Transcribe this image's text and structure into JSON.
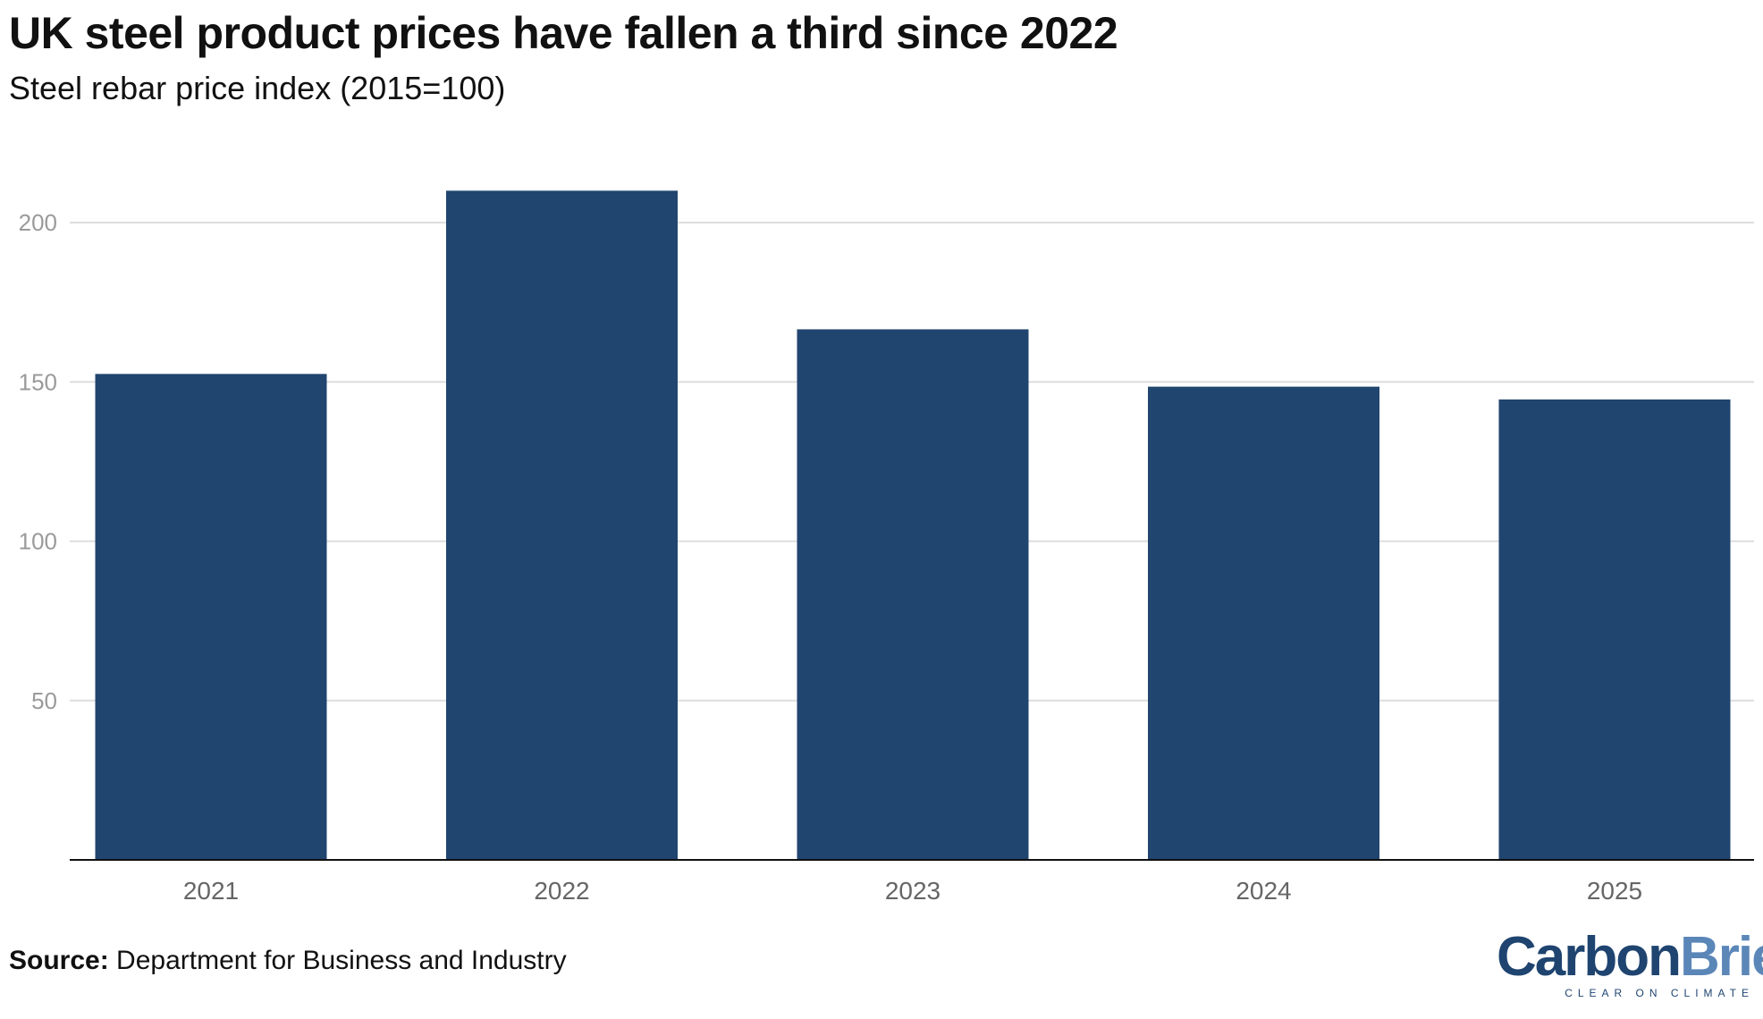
{
  "title": "UK steel product prices have fallen a third since 2022",
  "subtitle": "Steel rebar price index (2015=100)",
  "source_label": "Source:",
  "source_text": "Department for Business and Industry",
  "logo": {
    "word_part1": "Carbon",
    "word_part2": "Brief",
    "tagline": "CLEAR ON CLIMATE"
  },
  "colors": {
    "bar": "#20456f",
    "grid": "#dddddd",
    "tick_text": "#9a9a9a",
    "axis": "#111111",
    "x_label": "#666666"
  },
  "chart_data": {
    "type": "bar",
    "title": "UK steel product prices have fallen a third since 2022",
    "subtitle": "Steel rebar price index (2015=100)",
    "categories": [
      "2021",
      "2022",
      "2023",
      "2024",
      "2025"
    ],
    "values": [
      152.5,
      210,
      166.5,
      148.5,
      144.5
    ],
    "y_ticks": [
      50,
      100,
      150,
      200
    ],
    "ylim": [
      0,
      220
    ],
    "grid": true,
    "xlabel": "",
    "ylabel": ""
  }
}
